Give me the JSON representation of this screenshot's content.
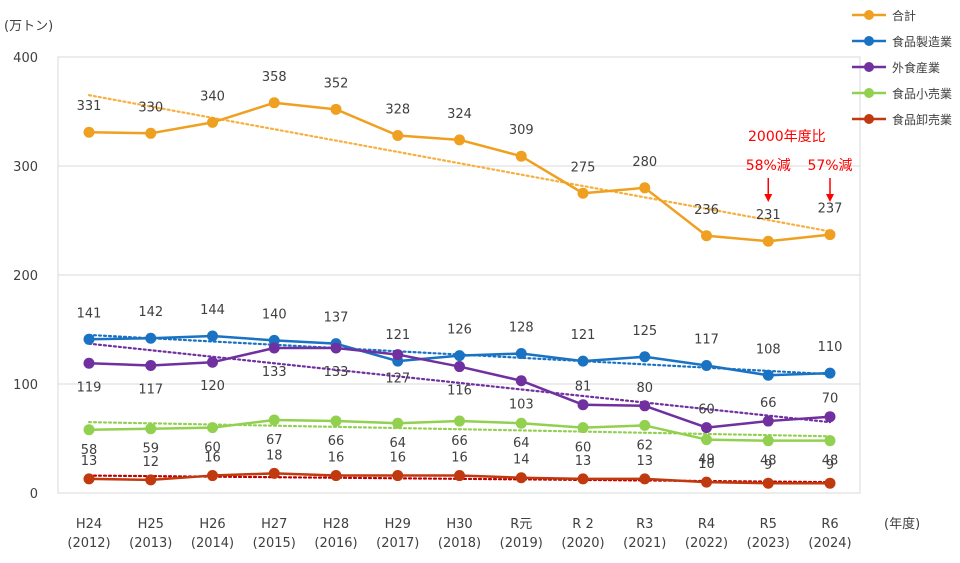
{
  "chart_data": {
    "type": "line",
    "unit_label": "(万トン)",
    "x_unit_label": "(年度)",
    "ylim": [
      0,
      400
    ],
    "yticks": [
      "0",
      "100",
      "200",
      "300",
      "400"
    ],
    "grid": true,
    "legend_position": "top-right",
    "categories": [
      {
        "label": "H24",
        "sub": "(2012)"
      },
      {
        "label": "H25",
        "sub": "(2013)"
      },
      {
        "label": "H26",
        "sub": "(2014)"
      },
      {
        "label": "H27",
        "sub": "(2015)"
      },
      {
        "label": "H28",
        "sub": "(2016)"
      },
      {
        "label": "H29",
        "sub": "(2017)"
      },
      {
        "label": "H30",
        "sub": "(2018)"
      },
      {
        "label": "R元",
        "sub": "(2019)"
      },
      {
        "label": "R 2",
        "sub": "(2020)"
      },
      {
        "label": "R3",
        "sub": "(2021)"
      },
      {
        "label": "R4",
        "sub": "(2022)"
      },
      {
        "label": "R5",
        "sub": "(2023)"
      },
      {
        "label": "R6",
        "sub": "(2024)"
      }
    ],
    "series": [
      {
        "name": "合計",
        "color": "#f0a020",
        "trend_color": "#f7b040",
        "values": [
          331,
          330,
          340,
          358,
          352,
          328,
          324,
          309,
          275,
          280,
          236,
          231,
          237
        ],
        "trend": [
          365,
          240
        ],
        "label_pos": "above"
      },
      {
        "name": "食品製造業",
        "color": "#1a73c2",
        "trend_color": "#1a73c2",
        "values": [
          141,
          142,
          144,
          140,
          137,
          121,
          126,
          128,
          121,
          125,
          117,
          108,
          110
        ],
        "trend": [
          145,
          109
        ],
        "label_pos": "above"
      },
      {
        "name": "外食産業",
        "color": "#7030a0",
        "trend_color": "#7030a0",
        "values": [
          119,
          117,
          120,
          133,
          133,
          127,
          116,
          103,
          81,
          80,
          60,
          66,
          70
        ],
        "trend": [
          137,
          65
        ],
        "label_pos": "mixed"
      },
      {
        "name": "食品小売業",
        "color": "#92d050",
        "trend_color": "#92d050",
        "values": [
          58,
          59,
          60,
          67,
          66,
          64,
          66,
          64,
          60,
          62,
          49,
          48,
          48
        ],
        "trend": [
          65,
          52
        ],
        "label_pos": "below"
      },
      {
        "name": "食品卸売業",
        "color": "#c0390f",
        "trend_color": "#c00000",
        "values": [
          13,
          12,
          16,
          18,
          16,
          16,
          16,
          14,
          13,
          13,
          10,
          9,
          9
        ],
        "trend": [
          16,
          10
        ],
        "label_pos": "above"
      }
    ],
    "annotations": {
      "title": "2000年度比",
      "items": [
        {
          "category_index": 11,
          "text": "58%減"
        },
        {
          "category_index": 12,
          "text": "57%減"
        }
      ]
    }
  }
}
